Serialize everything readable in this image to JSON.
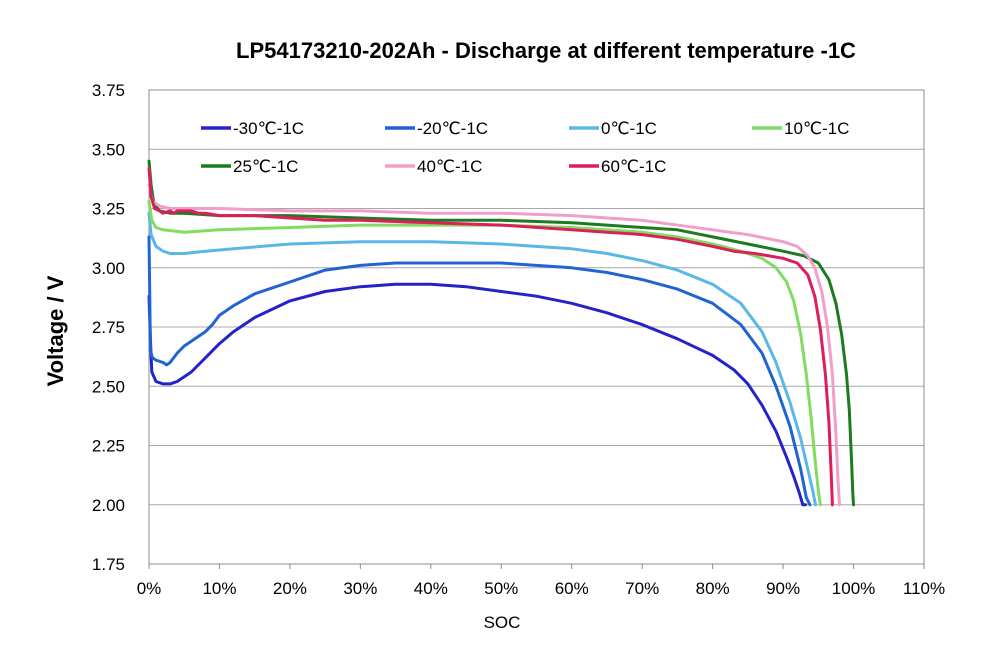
{
  "chart_data": {
    "type": "line",
    "title": "LP54173210-202Ah - Discharge at different temperature -1C",
    "xlabel": "SOC",
    "ylabel": "Voltage / V",
    "xlim": [
      0,
      110
    ],
    "ylim": [
      1.75,
      3.75
    ],
    "x_ticks": [
      "0%",
      "10%",
      "20%",
      "30%",
      "40%",
      "50%",
      "60%",
      "70%",
      "80%",
      "90%",
      "100%",
      "110%"
    ],
    "y_ticks": [
      "1.75",
      "2.00",
      "2.25",
      "2.50",
      "2.75",
      "3.00",
      "3.25",
      "3.50",
      "3.75"
    ],
    "grid": "horizontal",
    "legend_position": "top",
    "series": [
      {
        "name": "-30℃-1C",
        "color": "#2323c8",
        "points": [
          [
            0,
            2.88
          ],
          [
            0.2,
            2.7
          ],
          [
            0.4,
            2.56
          ],
          [
            1,
            2.52
          ],
          [
            2,
            2.51
          ],
          [
            3,
            2.51
          ],
          [
            4,
            2.52
          ],
          [
            6,
            2.56
          ],
          [
            8,
            2.62
          ],
          [
            10,
            2.68
          ],
          [
            12,
            2.73
          ],
          [
            15,
            2.79
          ],
          [
            20,
            2.86
          ],
          [
            25,
            2.9
          ],
          [
            30,
            2.92
          ],
          [
            35,
            2.93
          ],
          [
            40,
            2.93
          ],
          [
            45,
            2.92
          ],
          [
            50,
            2.9
          ],
          [
            55,
            2.88
          ],
          [
            60,
            2.85
          ],
          [
            65,
            2.81
          ],
          [
            70,
            2.76
          ],
          [
            75,
            2.7
          ],
          [
            80,
            2.63
          ],
          [
            83,
            2.57
          ],
          [
            85,
            2.51
          ],
          [
            87,
            2.42
          ],
          [
            89,
            2.31
          ],
          [
            90.5,
            2.2
          ],
          [
            91.5,
            2.12
          ],
          [
            92.3,
            2.05
          ],
          [
            92.8,
            2.0
          ],
          [
            93.2,
            2.0
          ]
        ]
      },
      {
        "name": "-20℃-1C",
        "color": "#1f64d2",
        "points": [
          [
            0,
            3.13
          ],
          [
            0.1,
            2.9
          ],
          [
            0.2,
            2.65
          ],
          [
            0.5,
            2.62
          ],
          [
            1,
            2.61
          ],
          [
            2,
            2.6
          ],
          [
            2.5,
            2.59
          ],
          [
            3,
            2.6
          ],
          [
            4,
            2.64
          ],
          [
            5,
            2.67
          ],
          [
            6,
            2.69
          ],
          [
            7,
            2.71
          ],
          [
            8,
            2.73
          ],
          [
            9,
            2.76
          ],
          [
            10,
            2.8
          ],
          [
            12,
            2.84
          ],
          [
            15,
            2.89
          ],
          [
            20,
            2.94
          ],
          [
            25,
            2.99
          ],
          [
            30,
            3.01
          ],
          [
            35,
            3.02
          ],
          [
            40,
            3.02
          ],
          [
            45,
            3.02
          ],
          [
            50,
            3.02
          ],
          [
            55,
            3.01
          ],
          [
            60,
            3.0
          ],
          [
            65,
            2.98
          ],
          [
            70,
            2.95
          ],
          [
            75,
            2.91
          ],
          [
            80,
            2.85
          ],
          [
            84,
            2.76
          ],
          [
            87,
            2.64
          ],
          [
            89,
            2.5
          ],
          [
            91,
            2.33
          ],
          [
            92.5,
            2.15
          ],
          [
            93.3,
            2.03
          ],
          [
            93.8,
            2.0
          ]
        ]
      },
      {
        "name": "0℃-1C",
        "color": "#5ab8e6",
        "points": [
          [
            0,
            3.23
          ],
          [
            0.3,
            3.14
          ],
          [
            1,
            3.09
          ],
          [
            2,
            3.07
          ],
          [
            3,
            3.06
          ],
          [
            5,
            3.06
          ],
          [
            8,
            3.07
          ],
          [
            12,
            3.08
          ],
          [
            20,
            3.1
          ],
          [
            30,
            3.11
          ],
          [
            40,
            3.11
          ],
          [
            50,
            3.1
          ],
          [
            60,
            3.08
          ],
          [
            65,
            3.06
          ],
          [
            70,
            3.03
          ],
          [
            75,
            2.99
          ],
          [
            80,
            2.93
          ],
          [
            84,
            2.85
          ],
          [
            87,
            2.73
          ],
          [
            89,
            2.6
          ],
          [
            91,
            2.43
          ],
          [
            92.5,
            2.28
          ],
          [
            93.5,
            2.15
          ],
          [
            94.2,
            2.06
          ],
          [
            94.6,
            2.0
          ]
        ]
      },
      {
        "name": "10℃-1C",
        "color": "#82dc62",
        "points": [
          [
            0,
            3.28
          ],
          [
            0.4,
            3.2
          ],
          [
            1,
            3.17
          ],
          [
            2,
            3.16
          ],
          [
            5,
            3.15
          ],
          [
            10,
            3.16
          ],
          [
            20,
            3.17
          ],
          [
            30,
            3.18
          ],
          [
            40,
            3.18
          ],
          [
            50,
            3.18
          ],
          [
            60,
            3.17
          ],
          [
            70,
            3.15
          ],
          [
            75,
            3.13
          ],
          [
            80,
            3.1
          ],
          [
            84,
            3.07
          ],
          [
            87,
            3.04
          ],
          [
            89,
            3.0
          ],
          [
            90.5,
            2.94
          ],
          [
            91.5,
            2.86
          ],
          [
            92.5,
            2.72
          ],
          [
            93.3,
            2.55
          ],
          [
            94,
            2.36
          ],
          [
            94.5,
            2.2
          ],
          [
            95,
            2.06
          ],
          [
            95.3,
            2.0
          ]
        ]
      },
      {
        "name": "25℃-1C",
        "color": "#1e7a1e",
        "points": [
          [
            0,
            3.45
          ],
          [
            0.3,
            3.35
          ],
          [
            0.7,
            3.27
          ],
          [
            1.5,
            3.24
          ],
          [
            3,
            3.23
          ],
          [
            5,
            3.23
          ],
          [
            10,
            3.22
          ],
          [
            20,
            3.22
          ],
          [
            30,
            3.21
          ],
          [
            40,
            3.2
          ],
          [
            50,
            3.2
          ],
          [
            60,
            3.19
          ],
          [
            70,
            3.17
          ],
          [
            75,
            3.16
          ],
          [
            80,
            3.13
          ],
          [
            85,
            3.1
          ],
          [
            90,
            3.07
          ],
          [
            93,
            3.05
          ],
          [
            95,
            3.02
          ],
          [
            96.5,
            2.95
          ],
          [
            97.5,
            2.85
          ],
          [
            98.3,
            2.72
          ],
          [
            99,
            2.55
          ],
          [
            99.4,
            2.4
          ],
          [
            99.7,
            2.2
          ],
          [
            99.9,
            2.05
          ],
          [
            100,
            2.0
          ]
        ]
      },
      {
        "name": "40℃-1C",
        "color": "#f0a0c8",
        "points": [
          [
            0,
            3.35
          ],
          [
            0.5,
            3.28
          ],
          [
            1.5,
            3.26
          ],
          [
            3,
            3.25
          ],
          [
            10,
            3.25
          ],
          [
            20,
            3.24
          ],
          [
            30,
            3.24
          ],
          [
            40,
            3.23
          ],
          [
            50,
            3.23
          ],
          [
            60,
            3.22
          ],
          [
            70,
            3.2
          ],
          [
            80,
            3.16
          ],
          [
            85,
            3.14
          ],
          [
            90,
            3.11
          ],
          [
            92,
            3.09
          ],
          [
            93.5,
            3.05
          ],
          [
            94.5,
            3.0
          ],
          [
            95.5,
            2.9
          ],
          [
            96.3,
            2.75
          ],
          [
            97,
            2.55
          ],
          [
            97.5,
            2.3
          ],
          [
            97.8,
            2.1
          ],
          [
            98,
            2.0
          ]
        ]
      },
      {
        "name": "60℃-1C",
        "color": "#dc1e5a",
        "points": [
          [
            0,
            3.42
          ],
          [
            0.3,
            3.3
          ],
          [
            0.8,
            3.25
          ],
          [
            1.5,
            3.24
          ],
          [
            2,
            3.23
          ],
          [
            3,
            3.24
          ],
          [
            3.5,
            3.23
          ],
          [
            4,
            3.24
          ],
          [
            5,
            3.24
          ],
          [
            6,
            3.24
          ],
          [
            7,
            3.23
          ],
          [
            8,
            3.23
          ],
          [
            10,
            3.22
          ],
          [
            15,
            3.22
          ],
          [
            20,
            3.21
          ],
          [
            25,
            3.2
          ],
          [
            30,
            3.2
          ],
          [
            40,
            3.19
          ],
          [
            50,
            3.18
          ],
          [
            60,
            3.16
          ],
          [
            65,
            3.15
          ],
          [
            70,
            3.14
          ],
          [
            75,
            3.12
          ],
          [
            80,
            3.09
          ],
          [
            83,
            3.07
          ],
          [
            86,
            3.06
          ],
          [
            88,
            3.05
          ],
          [
            90,
            3.04
          ],
          [
            92,
            3.02
          ],
          [
            93.5,
            2.97
          ],
          [
            94.5,
            2.88
          ],
          [
            95.3,
            2.74
          ],
          [
            96,
            2.55
          ],
          [
            96.5,
            2.35
          ],
          [
            96.8,
            2.15
          ],
          [
            97,
            2.0
          ]
        ]
      }
    ]
  }
}
